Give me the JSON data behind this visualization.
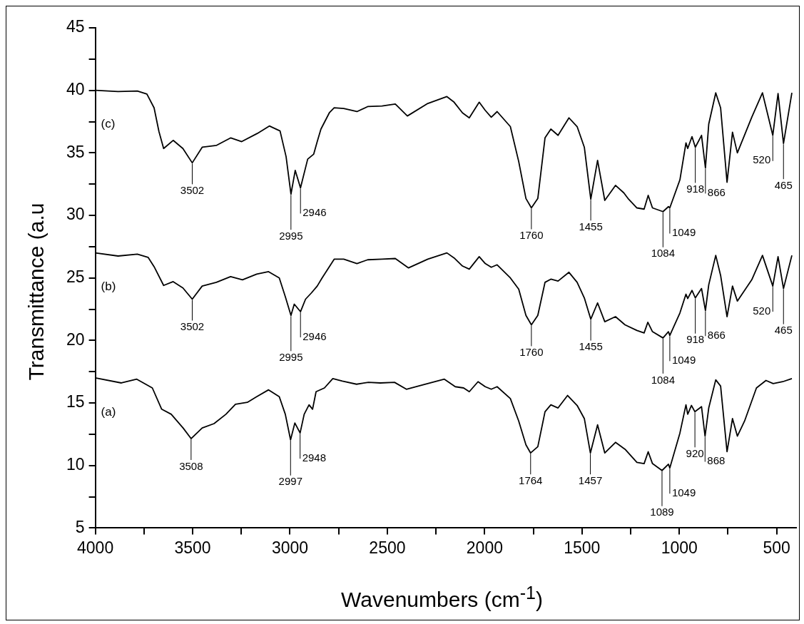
{
  "chart_data": {
    "type": "line",
    "xlabel": "Wavenumbers (cm$^{-1}$)",
    "ylabel": "Transmittance (a.u",
    "xlim": [
      4000,
      400
    ],
    "ylim": [
      5,
      45
    ],
    "xticks": [
      4000,
      {
        "value": 3750,
        "label": null
      },
      3500,
      {
        "value": 3250,
        "label": null
      },
      3000,
      {
        "value": 2750,
        "label": null
      },
      2500,
      {
        "value": 2250,
        "label": null
      },
      2000,
      {
        "value": 1750,
        "label": null
      },
      1500,
      {
        "value": 1250,
        "label": null
      },
      1000,
      {
        "value": 750,
        "label": null
      },
      500
    ],
    "yticks": [
      5,
      {
        "value": 7.5,
        "label": null
      },
      10,
      {
        "value": 12.5,
        "label": null
      },
      15,
      {
        "value": 17.5,
        "label": null
      },
      20,
      {
        "value": 22.5,
        "label": null
      },
      25,
      {
        "value": 27.5,
        "label": null
      },
      30,
      {
        "value": 32.5,
        "label": null
      },
      35,
      {
        "value": 37.5,
        "label": null
      },
      40,
      {
        "value": 42.5,
        "label": null
      },
      45
    ],
    "marker": "none",
    "line_style": "solid",
    "series": [
      {
        "name": "(c)",
        "color": "#000000",
        "x": [
          4000,
          3883,
          3784,
          3735,
          3698,
          3673,
          3649,
          3600,
          3550,
          3502,
          3451,
          3377,
          3304,
          3248,
          3168,
          3106,
          3051,
          3020,
          2995,
          2973,
          2946,
          2909,
          2878,
          2860,
          2841,
          2798,
          2773,
          2724,
          2656,
          2601,
          2527,
          2459,
          2397,
          2292,
          2194,
          2157,
          2114,
          2079,
          2028,
          1997,
          1966,
          1936,
          1868,
          1825,
          1788,
          1760,
          1727,
          1690,
          1660,
          1623,
          1567,
          1525,
          1488,
          1455,
          1420,
          1383,
          1328,
          1285,
          1261,
          1218,
          1181,
          1160,
          1138,
          1084,
          1056,
          1049,
          997,
          966,
          957,
          935,
          918,
          886,
          866,
          849,
          813,
          788,
          755,
          727,
          702,
          628,
          573,
          520,
          493,
          465,
          422
        ],
        "values": [
          40.0,
          39.9,
          39.95,
          39.7,
          38.6,
          36.7,
          35.35,
          36.0,
          35.35,
          34.2,
          35.45,
          35.6,
          36.2,
          35.9,
          36.55,
          37.15,
          36.75,
          34.7,
          31.7,
          33.6,
          32.2,
          34.5,
          34.9,
          35.9,
          36.9,
          38.2,
          38.6,
          38.55,
          38.3,
          38.7,
          38.75,
          38.9,
          37.95,
          38.95,
          39.5,
          39.05,
          38.2,
          37.8,
          39.05,
          38.4,
          37.85,
          38.3,
          37.1,
          34.3,
          31.35,
          30.6,
          31.35,
          36.2,
          36.9,
          36.4,
          37.8,
          37.1,
          35.45,
          31.3,
          34.4,
          31.2,
          32.4,
          31.8,
          31.3,
          30.6,
          30.5,
          31.6,
          30.6,
          30.3,
          30.7,
          30.6,
          32.85,
          35.8,
          35.35,
          36.3,
          35.45,
          36.4,
          33.8,
          37.3,
          39.8,
          38.6,
          32.65,
          36.65,
          35.0,
          37.85,
          39.8,
          36.4,
          39.75,
          35.75,
          39.8
        ]
      },
      {
        "name": "(b)",
        "color": "#000000",
        "x": [
          4000,
          3883,
          3784,
          3729,
          3698,
          3649,
          3600,
          3550,
          3502,
          3451,
          3378,
          3305,
          3244,
          3171,
          3110,
          3055,
          3024,
          2995,
          2978,
          2946,
          2920,
          2890,
          2860,
          2835,
          2773,
          2724,
          2656,
          2601,
          2527,
          2459,
          2391,
          2292,
          2194,
          2157,
          2114,
          2079,
          2028,
          1997,
          1966,
          1936,
          1868,
          1825,
          1788,
          1760,
          1727,
          1690,
          1660,
          1623,
          1567,
          1525,
          1488,
          1455,
          1420,
          1383,
          1328,
          1279,
          1218,
          1181,
          1162,
          1138,
          1084,
          1056,
          1049,
          997,
          966,
          957,
          935,
          918,
          886,
          866,
          849,
          813,
          788,
          755,
          727,
          702,
          628,
          573,
          520,
          493,
          465,
          422
        ],
        "values": [
          27.0,
          26.75,
          26.9,
          26.65,
          25.9,
          24.4,
          24.7,
          24.2,
          23.3,
          24.35,
          24.65,
          25.1,
          24.85,
          25.3,
          25.5,
          25.0,
          23.5,
          22.0,
          22.9,
          22.3,
          23.3,
          23.8,
          24.35,
          25.0,
          26.5,
          26.5,
          26.15,
          26.45,
          26.5,
          26.55,
          25.8,
          26.5,
          27.0,
          26.6,
          25.95,
          25.7,
          26.7,
          26.15,
          25.85,
          26.05,
          25.0,
          24.1,
          22.0,
          21.25,
          22.0,
          24.65,
          24.9,
          24.75,
          25.45,
          24.65,
          23.4,
          21.7,
          23.0,
          21.5,
          21.9,
          21.25,
          20.8,
          20.6,
          21.45,
          20.7,
          20.2,
          20.7,
          20.4,
          22.2,
          23.7,
          23.35,
          24.0,
          23.4,
          24.15,
          22.4,
          24.45,
          26.8,
          25.2,
          21.9,
          24.35,
          23.15,
          24.85,
          26.8,
          24.35,
          26.7,
          24.15,
          26.8
        ]
      },
      {
        "name": "(a)",
        "color": "#000000",
        "x": [
          4000,
          3866,
          3787,
          3707,
          3659,
          3610,
          3549,
          3508,
          3451,
          3390,
          3329,
          3280,
          3219,
          3171,
          3110,
          3055,
          3024,
          2997,
          2975,
          2948,
          2927,
          2902,
          2884,
          2866,
          2823,
          2780,
          2731,
          2658,
          2597,
          2536,
          2463,
          2402,
          2317,
          2207,
          2151,
          2108,
          2079,
          2034,
          1997,
          1966,
          1936,
          1868,
          1825,
          1788,
          1764,
          1727,
          1690,
          1660,
          1623,
          1574,
          1525,
          1488,
          1457,
          1420,
          1383,
          1328,
          1279,
          1218,
          1181,
          1160,
          1138,
          1089,
          1056,
          1049,
          997,
          966,
          957,
          938,
          920,
          886,
          868,
          849,
          813,
          788,
          755,
          727,
          702,
          665,
          604,
          555,
          518,
          469,
          422
        ],
        "values": [
          17.0,
          16.6,
          16.9,
          16.2,
          14.5,
          14.1,
          13.0,
          12.15,
          13.0,
          13.35,
          14.1,
          14.9,
          15.05,
          15.5,
          16.05,
          15.5,
          14.1,
          12.05,
          13.4,
          12.6,
          14.1,
          14.85,
          14.5,
          15.9,
          16.2,
          16.95,
          16.75,
          16.5,
          16.65,
          16.6,
          16.65,
          16.1,
          16.45,
          16.9,
          16.3,
          16.2,
          15.9,
          16.7,
          16.3,
          16.1,
          16.3,
          15.35,
          13.55,
          11.65,
          11.0,
          11.5,
          14.3,
          14.85,
          14.6,
          15.6,
          14.8,
          13.75,
          11.0,
          13.25,
          11.0,
          11.85,
          11.3,
          10.25,
          10.15,
          11.1,
          10.15,
          9.6,
          10.1,
          9.8,
          12.6,
          14.85,
          14.1,
          14.8,
          14.3,
          14.7,
          12.35,
          14.6,
          16.85,
          16.35,
          11.1,
          13.75,
          12.35,
          13.55,
          16.2,
          16.8,
          16.55,
          16.7,
          16.95
        ]
      }
    ],
    "annotations": [
      {
        "text": "3502",
        "x": 3502,
        "y": 34.2
      },
      {
        "text": "2995",
        "x": 2995,
        "y": 31.7
      },
      {
        "text": "2946",
        "x": 2946,
        "y": 32.2
      },
      {
        "text": "1760",
        "x": 1760,
        "y": 30.6
      },
      {
        "text": "1455",
        "x": 1455,
        "y": 31.3
      },
      {
        "text": "1084",
        "x": 1084,
        "y": 30.3
      },
      {
        "text": "1049",
        "x": 1049,
        "y": 30.6
      },
      {
        "text": "918",
        "x": 918,
        "y": 35.45
      },
      {
        "text": "866",
        "x": 866,
        "y": 33.8
      },
      {
        "text": "520",
        "x": 520,
        "y": 36.4
      },
      {
        "text": "465",
        "x": 465,
        "y": 35.75
      },
      {
        "text": "3502",
        "x": 3502,
        "y": 23.3
      },
      {
        "text": "2995",
        "x": 2995,
        "y": 22.0
      },
      {
        "text": "2946",
        "x": 2946,
        "y": 22.3
      },
      {
        "text": "1760",
        "x": 1760,
        "y": 21.25
      },
      {
        "text": "1455",
        "x": 1455,
        "y": 21.7
      },
      {
        "text": "1084",
        "x": 1084,
        "y": 20.2
      },
      {
        "text": "1049",
        "x": 1049,
        "y": 20.4
      },
      {
        "text": "918",
        "x": 918,
        "y": 23.4
      },
      {
        "text": "866",
        "x": 866,
        "y": 22.4
      },
      {
        "text": "520",
        "x": 520,
        "y": 24.35
      },
      {
        "text": "465",
        "x": 465,
        "y": 24.15
      },
      {
        "text": "3508",
        "x": 3508,
        "y": 12.15
      },
      {
        "text": "2997",
        "x": 2997,
        "y": 12.05
      },
      {
        "text": "2948",
        "x": 2948,
        "y": 12.6
      },
      {
        "text": "1764",
        "x": 1764,
        "y": 11.0
      },
      {
        "text": "1457",
        "x": 1457,
        "y": 11.0
      },
      {
        "text": "1089",
        "x": 1089,
        "y": 9.6
      },
      {
        "text": "1049",
        "x": 1049,
        "y": 9.8
      },
      {
        "text": "920",
        "x": 920,
        "y": 14.3
      },
      {
        "text": "868",
        "x": 868,
        "y": 12.35
      }
    ]
  }
}
